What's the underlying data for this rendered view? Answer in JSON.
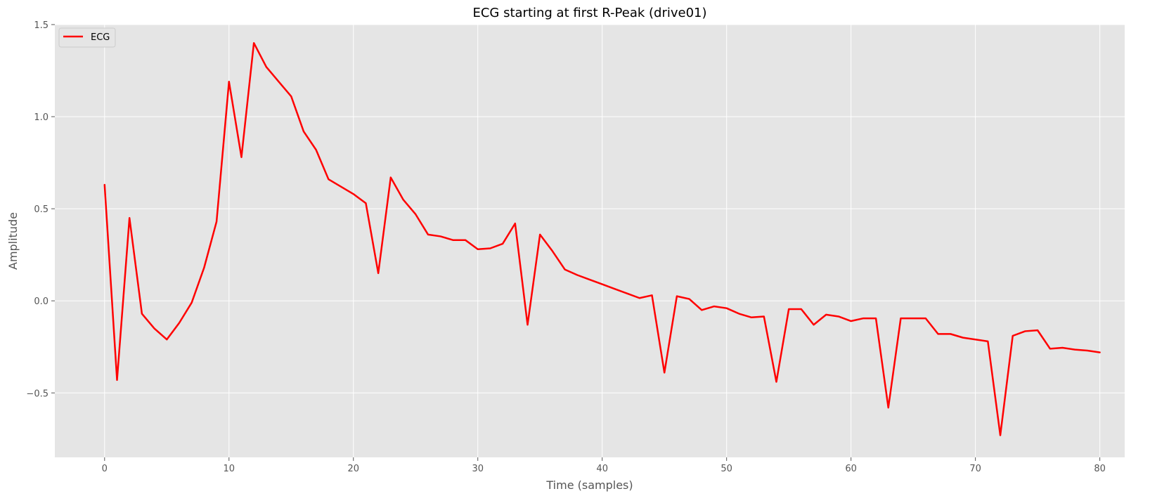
{
  "chart_data": {
    "type": "line",
    "title": "ECG starting at first R-Peak (drive01)",
    "xlabel": "Time (samples)",
    "ylabel": "Amplitude",
    "xlim": [
      -4,
      82
    ],
    "ylim": [
      -0.85,
      1.5
    ],
    "x_ticks": [
      0,
      10,
      20,
      30,
      40,
      50,
      60,
      70,
      80
    ],
    "x_tick_labels": [
      "0",
      "10",
      "20",
      "30",
      "40",
      "50",
      "60",
      "70",
      "80"
    ],
    "y_ticks": [
      -0.5,
      0.0,
      0.5,
      1.0,
      1.5
    ],
    "y_tick_labels": [
      "−0.5",
      "0.0",
      "0.5",
      "1.0",
      "1.5"
    ],
    "grid": true,
    "legend": {
      "position": "top-left",
      "entries": [
        "ECG"
      ]
    },
    "series": [
      {
        "name": "ECG",
        "color": "#ff0000",
        "x": [
          0,
          1,
          2,
          3,
          4,
          5,
          6,
          7,
          8,
          9,
          10,
          11,
          12,
          13,
          14,
          15,
          16,
          17,
          18,
          19,
          20,
          21,
          22,
          23,
          24,
          25,
          26,
          27,
          28,
          29,
          30,
          31,
          32,
          33,
          34,
          35,
          36,
          37,
          38,
          39,
          40,
          41,
          42,
          43,
          44,
          45,
          46,
          47,
          48,
          49,
          50,
          51,
          52,
          53,
          54,
          55,
          56,
          57,
          58,
          59,
          60,
          61,
          62,
          63,
          64,
          65,
          66,
          67,
          68,
          69,
          70,
          71,
          72,
          73,
          74,
          75,
          76,
          77,
          78,
          79,
          80
        ],
        "values": [
          0.63,
          -0.43,
          0.45,
          -0.07,
          -0.15,
          -0.21,
          -0.12,
          -0.01,
          0.18,
          0.43,
          1.19,
          0.78,
          1.4,
          1.27,
          1.19,
          1.11,
          0.92,
          0.82,
          0.66,
          0.62,
          0.58,
          0.53,
          0.15,
          0.67,
          0.55,
          0.47,
          0.36,
          0.35,
          0.33,
          0.33,
          0.28,
          0.285,
          0.31,
          0.42,
          -0.13,
          0.36,
          0.27,
          0.17,
          0.14,
          0.115,
          0.09,
          0.065,
          0.04,
          0.015,
          0.03,
          -0.39,
          0.025,
          0.01,
          -0.05,
          -0.03,
          -0.04,
          -0.07,
          -0.09,
          -0.085,
          -0.44,
          -0.045,
          -0.045,
          -0.13,
          -0.075,
          -0.085,
          -0.11,
          -0.095,
          -0.095,
          -0.58,
          -0.095,
          -0.095,
          -0.095,
          -0.18,
          -0.18,
          -0.2,
          -0.21,
          -0.22,
          -0.73,
          -0.19,
          -0.165,
          -0.16,
          -0.26,
          -0.255,
          -0.265,
          -0.27,
          -0.28
        ]
      }
    ]
  },
  "colors": {
    "plot_background": "#e5e5e5",
    "grid": "#ffffff",
    "line": "#ff0000"
  }
}
